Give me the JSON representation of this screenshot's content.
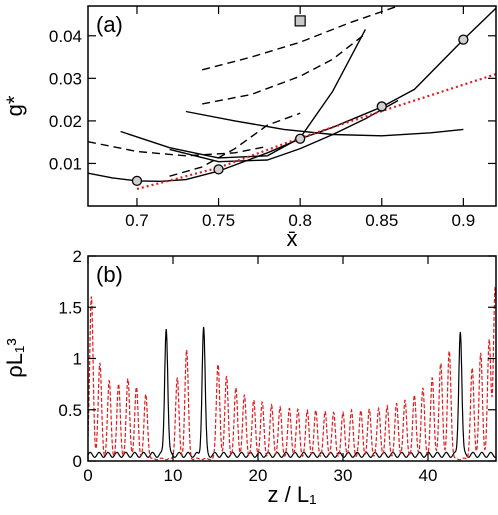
{
  "chart_data": [
    {
      "type": "line",
      "panel_label": "(a)",
      "xlabel": "x̄",
      "ylabel": "g*",
      "xlim": [
        0.67,
        0.92
      ],
      "ylim": [
        0.0,
        0.047
      ],
      "xticks": [
        0.7,
        0.75,
        0.8,
        0.85,
        0.9
      ],
      "xtick_labels": [
        "0.7",
        "0.75",
        "0.8",
        "0.85",
        "0.9"
      ],
      "yticks": [
        0.01,
        0.02,
        0.03,
        0.04
      ],
      "ytick_labels": [
        "0.01",
        "0.02",
        "0.03",
        "0.04"
      ],
      "grid": false,
      "series": [
        {
          "style": "solid",
          "color": "#000000",
          "x": [
            0.67,
            0.685,
            0.7,
            0.715,
            0.73,
            0.75,
            0.78,
            0.8,
            0.82,
            0.85,
            0.87,
            0.9,
            0.92
          ],
          "y": [
            0.0077,
            0.0066,
            0.0059,
            0.0058,
            0.0062,
            0.0082,
            0.0125,
            0.0158,
            0.0185,
            0.0233,
            0.0274,
            0.0391,
            0.0465
          ]
        },
        {
          "style": "solid",
          "color": "#000000",
          "x": [
            0.72,
            0.75,
            0.78,
            0.8,
            0.82,
            0.84,
            0.86
          ],
          "y": [
            0.0133,
            0.0104,
            0.0108,
            0.0135,
            0.0168,
            0.0205,
            0.0248
          ]
        },
        {
          "style": "solid",
          "color": "#000000",
          "x": [
            0.69,
            0.72,
            0.75,
            0.78,
            0.8,
            0.82,
            0.84
          ],
          "y": [
            0.0175,
            0.0137,
            0.0113,
            0.0118,
            0.016,
            0.027,
            0.0415
          ]
        },
        {
          "style": "solid",
          "color": "#000000",
          "x": [
            0.73,
            0.76,
            0.79,
            0.82,
            0.85,
            0.88,
            0.9
          ],
          "y": [
            0.0222,
            0.02,
            0.018,
            0.0168,
            0.0165,
            0.0172,
            0.018
          ]
        },
        {
          "style": "dashed",
          "color": "#000000",
          "x": [
            0.67,
            0.7,
            0.73,
            0.76,
            0.78
          ],
          "y": [
            0.0151,
            0.0128,
            0.0118,
            0.0125,
            0.014
          ]
        },
        {
          "style": "dashed",
          "color": "#000000",
          "x": [
            0.72,
            0.74,
            0.76,
            0.78,
            0.8
          ],
          "y": [
            0.007,
            0.0092,
            0.0135,
            0.019,
            0.0218
          ]
        },
        {
          "style": "dashed",
          "color": "#000000",
          "x": [
            0.74,
            0.77,
            0.8,
            0.82,
            0.84
          ],
          "y": [
            0.024,
            0.0262,
            0.0305,
            0.0345,
            0.0405
          ]
        },
        {
          "style": "dashed",
          "color": "#000000",
          "x": [
            0.74,
            0.77,
            0.8,
            0.83,
            0.86
          ],
          "y": [
            0.032,
            0.035,
            0.0385,
            0.043,
            0.047
          ]
        },
        {
          "style": "dotted",
          "color": "#e41a1c",
          "x": [
            0.7,
            0.75,
            0.8,
            0.85,
            0.9,
            0.92
          ],
          "y": [
            0.004,
            0.009,
            0.016,
            0.0223,
            0.0285,
            0.031
          ]
        }
      ],
      "markers": [
        {
          "shape": "circle",
          "x": 0.7,
          "y": 0.0059
        },
        {
          "shape": "circle",
          "x": 0.75,
          "y": 0.0086
        },
        {
          "shape": "circle",
          "x": 0.8,
          "y": 0.0158
        },
        {
          "shape": "circle",
          "x": 0.85,
          "y": 0.0234
        },
        {
          "shape": "circle",
          "x": 0.9,
          "y": 0.0391
        },
        {
          "shape": "square",
          "x": 0.8,
          "y": 0.0435
        }
      ]
    },
    {
      "type": "line",
      "panel_label": "(b)",
      "xlabel": "z / L₁",
      "ylabel": "ρL₁³",
      "xlim": [
        0,
        48
      ],
      "ylim": [
        0,
        2
      ],
      "xticks": [
        0,
        10,
        20,
        30,
        40
      ],
      "xtick_labels": [
        "0",
        "10",
        "20",
        "30",
        "40"
      ],
      "yticks": [
        0,
        0.5,
        1,
        1.5,
        2
      ],
      "ytick_labels": [
        "0",
        "0.5",
        "1",
        "1.5",
        "2"
      ],
      "grid": false,
      "series": [
        {
          "style": "solid",
          "color": "#000000",
          "peaks": [
            {
              "x": 9.2,
              "y": 1.31
            },
            {
              "x": 13.6,
              "y": 1.31
            },
            {
              "x": 43.8,
              "y": 1.28
            }
          ],
          "baseline": 0.06
        },
        {
          "style": "dashed",
          "color": "#e41a1c",
          "peaks": [
            {
              "x": 0.4,
              "y": 1.6
            },
            {
              "x": 1.4,
              "y": 0.95
            },
            {
              "x": 2.5,
              "y": 0.78
            },
            {
              "x": 3.6,
              "y": 0.75
            },
            {
              "x": 4.7,
              "y": 0.8
            },
            {
              "x": 5.7,
              "y": 0.72
            },
            {
              "x": 6.8,
              "y": 0.65
            },
            {
              "x": 10.5,
              "y": 0.81
            },
            {
              "x": 11.6,
              "y": 1.08
            },
            {
              "x": 15.3,
              "y": 0.95
            },
            {
              "x": 16.3,
              "y": 0.83
            },
            {
              "x": 17.4,
              "y": 0.72
            },
            {
              "x": 18.4,
              "y": 0.65
            },
            {
              "x": 19.5,
              "y": 0.6
            },
            {
              "x": 20.5,
              "y": 0.58
            },
            {
              "x": 21.6,
              "y": 0.55
            },
            {
              "x": 22.6,
              "y": 0.53
            },
            {
              "x": 23.7,
              "y": 0.52
            },
            {
              "x": 24.7,
              "y": 0.51
            },
            {
              "x": 25.8,
              "y": 0.5
            },
            {
              "x": 26.8,
              "y": 0.5
            },
            {
              "x": 27.9,
              "y": 0.49
            },
            {
              "x": 28.9,
              "y": 0.48
            },
            {
              "x": 30.0,
              "y": 0.48
            },
            {
              "x": 31.0,
              "y": 0.5
            },
            {
              "x": 32.1,
              "y": 0.5
            },
            {
              "x": 33.1,
              "y": 0.51
            },
            {
              "x": 34.2,
              "y": 0.52
            },
            {
              "x": 35.2,
              "y": 0.54
            },
            {
              "x": 36.3,
              "y": 0.57
            },
            {
              "x": 37.3,
              "y": 0.6
            },
            {
              "x": 38.4,
              "y": 0.65
            },
            {
              "x": 39.4,
              "y": 0.72
            },
            {
              "x": 40.5,
              "y": 0.82
            },
            {
              "x": 41.5,
              "y": 0.96
            },
            {
              "x": 42.5,
              "y": 1.08
            },
            {
              "x": 45.2,
              "y": 0.9
            },
            {
              "x": 46.2,
              "y": 1.05
            },
            {
              "x": 47.2,
              "y": 1.18
            },
            {
              "x": 47.9,
              "y": 1.7
            }
          ],
          "baseline": 0.02
        }
      ]
    }
  ]
}
